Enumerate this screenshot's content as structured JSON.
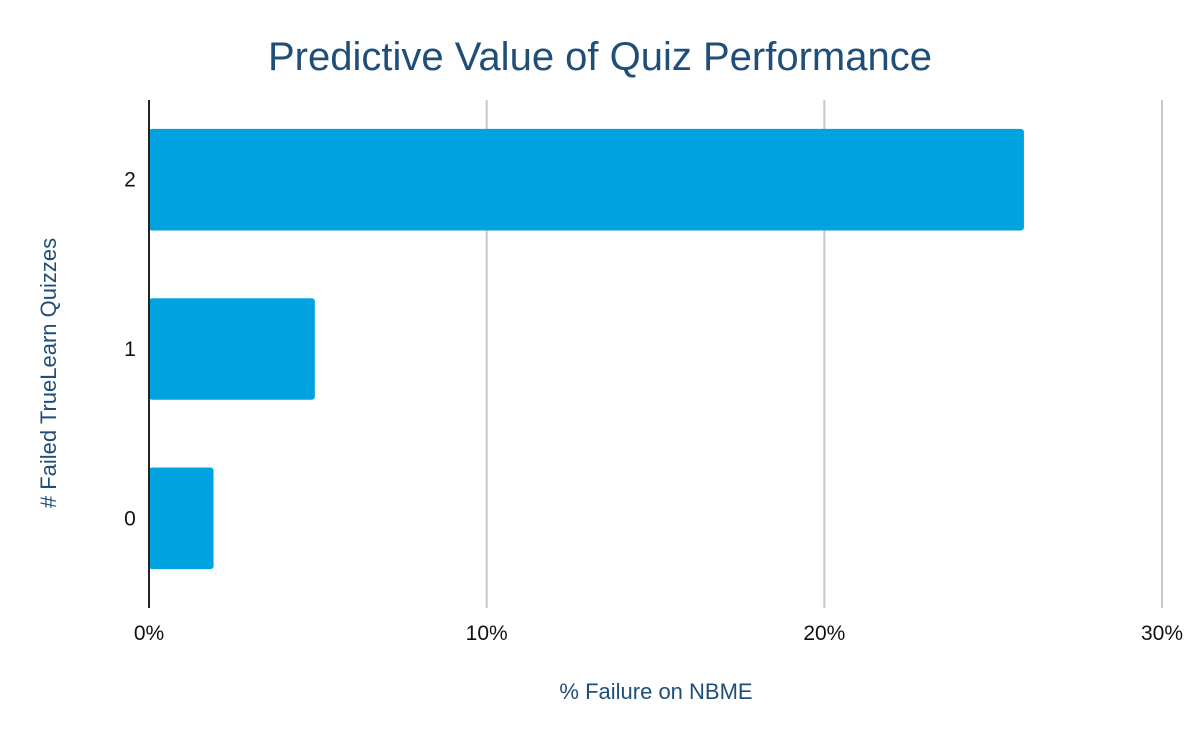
{
  "chart_data": {
    "type": "bar",
    "orientation": "horizontal",
    "title": "Predictive Value of Quiz Performance",
    "xlabel": "% Failure on NBME",
    "ylabel": "# Failed TrueLearn Quizzes",
    "categories": [
      "2",
      "1",
      "0"
    ],
    "values": [
      26,
      5,
      2
    ],
    "xlim": [
      0,
      30
    ],
    "xticks": [
      0,
      10,
      20,
      30
    ],
    "xtick_labels": [
      "0%",
      "10%",
      "20%",
      "30%"
    ],
    "grid": true,
    "legend": "none",
    "bar_color": "#00a3e0"
  }
}
